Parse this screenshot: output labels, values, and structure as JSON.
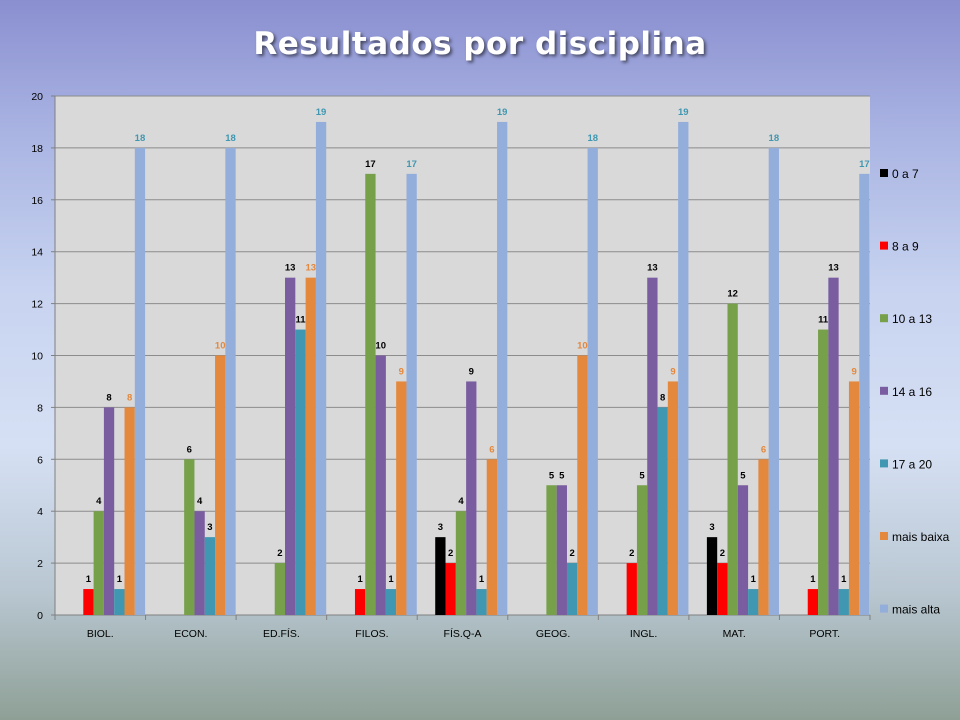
{
  "title": "Resultados por disciplina",
  "chart_data": {
    "type": "bar",
    "title": "Resultados por disciplina",
    "categories": [
      "BIOL.",
      "ECON.",
      "ED.FÍS.",
      "FILOS.",
      "FÍS.Q-A",
      "GEOG.",
      "INGL.",
      "MAT.",
      "PORT."
    ],
    "ylim": [
      0,
      20
    ],
    "yticks": [
      "0",
      "2",
      "4",
      "6",
      "8",
      "10",
      "12",
      "14",
      "16",
      "18",
      "20"
    ],
    "grid": true,
    "legend_position": "right",
    "series": [
      {
        "name": "0 a 7",
        "color": "#000000",
        "label_color": "#000000",
        "values": [
          null,
          null,
          null,
          null,
          3,
          null,
          null,
          3,
          null
        ]
      },
      {
        "name": "8 a 9",
        "color": "#ff0000",
        "label_color": "#000000",
        "values": [
          1,
          null,
          null,
          1,
          2,
          null,
          2,
          2,
          1
        ]
      },
      {
        "name": "10 a 13",
        "color": "#77a04a",
        "label_color": "#000000",
        "values": [
          4,
          6,
          2,
          17,
          4,
          5,
          5,
          12,
          11
        ]
      },
      {
        "name": "14 a 16",
        "color": "#7a5da0",
        "label_color": "#000000",
        "values": [
          8,
          4,
          13,
          10,
          9,
          5,
          13,
          5,
          13
        ]
      },
      {
        "name": "17 a 20",
        "color": "#3f97b1",
        "label_color": "#000000",
        "values": [
          1,
          3,
          11,
          1,
          1,
          2,
          8,
          1,
          1
        ]
      },
      {
        "name": "mais baixa",
        "color": "#e3883d",
        "label_color": "#e3883d",
        "values": [
          8,
          10,
          13,
          9,
          6,
          10,
          9,
          6,
          9
        ]
      },
      {
        "name": "mais alta",
        "color": "#94aedb",
        "label_color": "#3f97b1",
        "values": [
          18,
          18,
          19,
          17,
          19,
          18,
          19,
          18,
          17
        ]
      }
    ]
  }
}
